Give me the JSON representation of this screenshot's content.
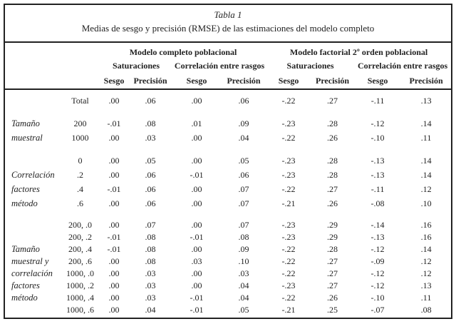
{
  "colors": {
    "ink": "#222222",
    "background": "#ffffff"
  },
  "title": {
    "label": "Tabla 1",
    "subtitle": "Medias de sesgo y precisión (RMSE) de las estimaciones del modelo completo"
  },
  "table": {
    "col_groups": [
      {
        "label": "Modelo completo poblacional"
      },
      {
        "label": "Modelo factorial 2º orden poblacional"
      }
    ],
    "sub_groups": [
      "Saturaciones",
      "Correlación entre rasgos",
      "Saturaciones",
      "Correlación entre rasgos"
    ],
    "metric_headers": [
      "Sesgo",
      "Precisión",
      "Sesgo",
      "Precisión",
      "Sesgo",
      "Precisión",
      "Sesgo",
      "Precisión"
    ],
    "sections": [
      {
        "rows": [
          {
            "group": "",
            "label": "Total",
            "values": [
              ".00",
              ".06",
              ".00",
              ".06",
              "-.22",
              ".27",
              "-.11",
              ".13"
            ]
          }
        ]
      },
      {
        "rows": [
          {
            "group": "Tamaño",
            "label": "200",
            "values": [
              "-.01",
              ".08",
              ".01",
              ".09",
              "-.23",
              ".28",
              "-.12",
              ".14"
            ]
          },
          {
            "group": "muestral",
            "label": "1000",
            "values": [
              ".00",
              ".03",
              ".00",
              ".04",
              "-.22",
              ".26",
              "-.10",
              ".11"
            ]
          }
        ]
      },
      {
        "rows": [
          {
            "group": "",
            "label": "0",
            "values": [
              ".00",
              ".05",
              ".00",
              ".05",
              "-.23",
              ".28",
              "-.13",
              ".14"
            ]
          },
          {
            "group": "Correlación",
            "label": ".2",
            "values": [
              ".00",
              ".06",
              "-.01",
              ".06",
              "-.23",
              ".28",
              "-.13",
              ".14"
            ]
          },
          {
            "group": "factores",
            "label": ".4",
            "values": [
              "-.01",
              ".06",
              ".00",
              ".07",
              "-.22",
              ".27",
              "-.11",
              ".12"
            ]
          },
          {
            "group": "método",
            "label": ".6",
            "values": [
              ".00",
              ".06",
              ".00",
              ".07",
              "-.21",
              ".26",
              "-.08",
              ".10"
            ]
          }
        ]
      },
      {
        "compact": true,
        "rows": [
          {
            "group": "",
            "label": "200, .0",
            "values": [
              ".00",
              ".07",
              ".00",
              ".07",
              "-.23",
              ".29",
              "-.14",
              ".16"
            ]
          },
          {
            "group": "",
            "label": "200, .2",
            "values": [
              "-.01",
              ".08",
              "-.01",
              ".08",
              "-.23",
              ".29",
              "-.13",
              ".16"
            ]
          },
          {
            "group": "Tamaño",
            "label": "200, .4",
            "values": [
              "-.01",
              ".08",
              ".00",
              ".09",
              "-.22",
              ".28",
              "-.12",
              ".14"
            ]
          },
          {
            "group": "muestral y",
            "label": "200, .6",
            "values": [
              ".00",
              ".08",
              ".03",
              ".10",
              "-.22",
              ".27",
              "-.09",
              ".12"
            ]
          },
          {
            "group": "correlación",
            "label": "1000, .0",
            "values": [
              ".00",
              ".03",
              ".00",
              ".03",
              "-.22",
              ".27",
              "-.12",
              ".12"
            ]
          },
          {
            "group": "factores",
            "label": "1000, .2",
            "values": [
              ".00",
              ".03",
              ".00",
              ".04",
              "-.23",
              ".27",
              "-.12",
              ".13"
            ]
          },
          {
            "group": "método",
            "label": "1000, .4",
            "values": [
              ".00",
              ".03",
              "-.01",
              ".04",
              "-.22",
              ".26",
              "-.10",
              ".11"
            ]
          },
          {
            "group": "",
            "label": "1000, .6",
            "values": [
              ".00",
              ".04",
              "-.01",
              ".05",
              "-.21",
              ".25",
              "-.07",
              ".08"
            ]
          }
        ]
      }
    ]
  }
}
